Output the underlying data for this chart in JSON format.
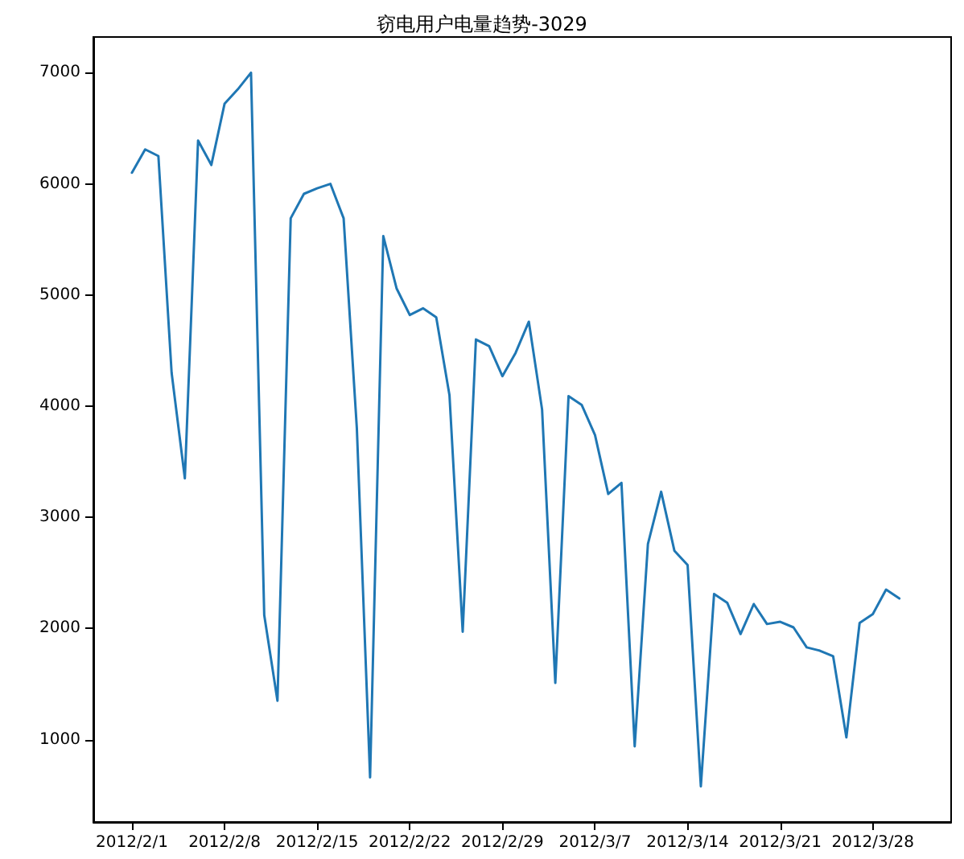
{
  "chart_data": {
    "type": "line",
    "title": "窃电用户电量趋势-3029",
    "x": [
      "2012-02-01",
      "2012-02-02",
      "2012-02-03",
      "2012-02-04",
      "2012-02-05",
      "2012-02-06",
      "2012-02-07",
      "2012-02-08",
      "2012-02-09",
      "2012-02-10",
      "2012-02-11",
      "2012-02-12",
      "2012-02-13",
      "2012-02-14",
      "2012-02-15",
      "2012-02-16",
      "2012-02-17",
      "2012-02-18",
      "2012-02-19",
      "2012-02-20",
      "2012-02-21",
      "2012-02-22",
      "2012-02-23",
      "2012-02-24",
      "2012-02-25",
      "2012-02-26",
      "2012-02-27",
      "2012-02-28",
      "2012-02-29",
      "2012-03-01",
      "2012-03-02",
      "2012-03-03",
      "2012-03-04",
      "2012-03-05",
      "2012-03-06",
      "2012-03-07",
      "2012-03-08",
      "2012-03-09",
      "2012-03-10",
      "2012-03-11",
      "2012-03-12",
      "2012-03-13",
      "2012-03-14",
      "2012-03-15",
      "2012-03-16",
      "2012-03-17",
      "2012-03-18",
      "2012-03-19",
      "2012-03-20",
      "2012-03-21",
      "2012-03-22",
      "2012-03-23",
      "2012-03-24",
      "2012-03-25",
      "2012-03-26",
      "2012-03-27",
      "2012-03-28",
      "2012-03-29",
      "2012-03-30"
    ],
    "series": [
      {
        "color": "#1f77b4",
        "values": [
          6100,
          6310,
          6250,
          4300,
          3350,
          6390,
          6170,
          6720,
          6850,
          7000,
          2120,
          1350,
          5690,
          5910,
          5960,
          6000,
          5690,
          3800,
          660,
          5530,
          5060,
          4820,
          4880,
          4800,
          4100,
          1970,
          4600,
          4540,
          4270,
          4480,
          4760,
          3970,
          1510,
          4090,
          4010,
          3740,
          3210,
          3310,
          940,
          2760,
          3230,
          2700,
          2570,
          580,
          2310,
          2230,
          1950,
          2220,
          2040,
          2060,
          2010,
          1830,
          1800,
          1750,
          1020,
          2050,
          2130,
          2350,
          2270
        ]
      }
    ],
    "xlim": [
      "2012-01-29T02:00",
      "2012-04-02T22:00"
    ],
    "xticks": [
      {
        "value": "2012-02-01",
        "label": "2012/2/1"
      },
      {
        "value": "2012-02-08",
        "label": "2012/2/8"
      },
      {
        "value": "2012-02-15",
        "label": "2012/2/15"
      },
      {
        "value": "2012-02-22",
        "label": "2012/2/22"
      },
      {
        "value": "2012-02-29",
        "label": "2012/2/29"
      },
      {
        "value": "2012-03-07",
        "label": "2012/3/7"
      },
      {
        "value": "2012-03-14",
        "label": "2012/3/14"
      },
      {
        "value": "2012-03-21",
        "label": "2012/3/21"
      },
      {
        "value": "2012-03-28",
        "label": "2012/3/28"
      }
    ],
    "ylim": [
      259,
      7321
    ],
    "yticks": [
      1000,
      2000,
      3000,
      4000,
      5000,
      6000,
      7000
    ],
    "grid": false,
    "marker": "none",
    "line_style": "solid"
  }
}
